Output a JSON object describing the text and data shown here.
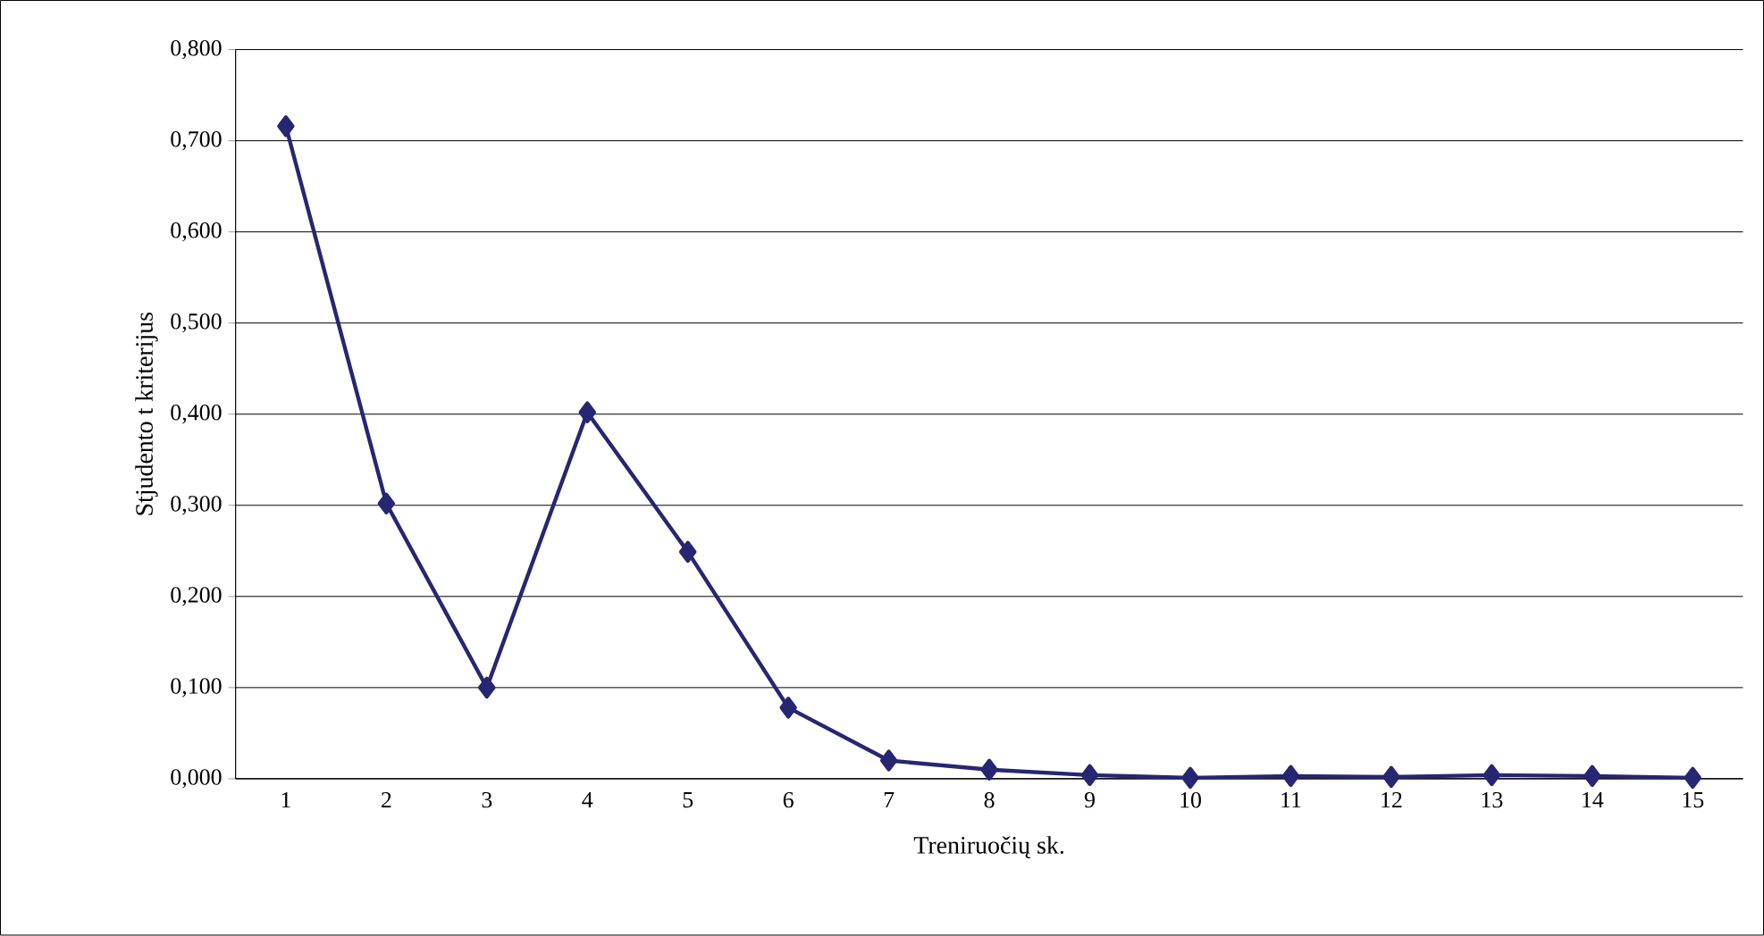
{
  "chart_data": {
    "type": "line",
    "xlabel": "Treniruočių sk.",
    "ylabel": "Stjudento t kriterijus",
    "categories": [
      "1",
      "2",
      "3",
      "4",
      "5",
      "6",
      "7",
      "8",
      "9",
      "10",
      "11",
      "12",
      "13",
      "14",
      "15"
    ],
    "series": [
      {
        "color": "#262673",
        "values": [
          0.716,
          0.302,
          0.1,
          0.402,
          0.249,
          0.078,
          0.02,
          0.01,
          0.004,
          0.001,
          0.003,
          0.002,
          0.004,
          0.003,
          0.001
        ]
      }
    ],
    "ylim": [
      0,
      0.8
    ],
    "yticks": [
      {
        "value": 0,
        "label": "0,000"
      },
      {
        "value": 0.1,
        "label": "0,100"
      },
      {
        "value": 0.2,
        "label": "0,200"
      },
      {
        "value": 0.3,
        "label": "0,300"
      },
      {
        "value": 0.4,
        "label": "0,400"
      },
      {
        "value": 0.5,
        "label": "0,500"
      },
      {
        "value": 0.6,
        "label": "0,600"
      },
      {
        "value": 0.7,
        "label": "0,700"
      },
      {
        "value": 0.8,
        "label": "0,800"
      }
    ],
    "grid": "y",
    "marker": "diamond",
    "line_style": "solid"
  }
}
